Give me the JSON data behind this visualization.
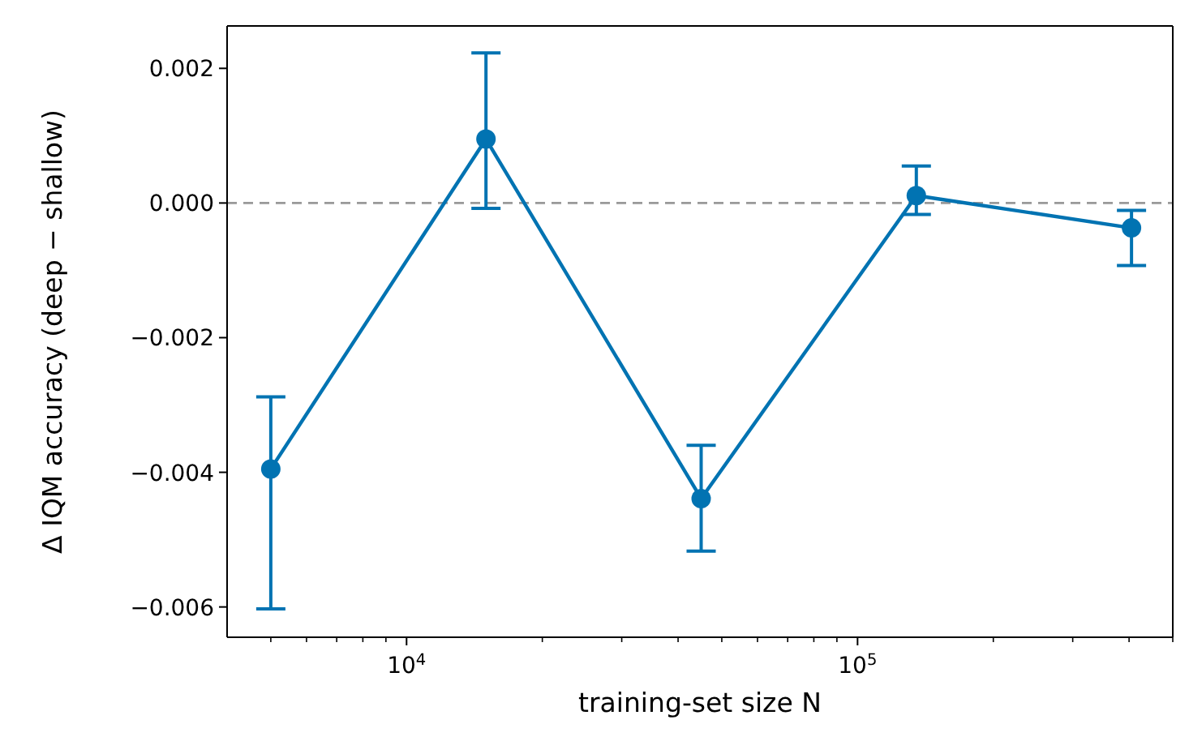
{
  "chart_data": {
    "type": "line",
    "xlabel": "training-set size N",
    "ylabel": "Δ IQM accuracy (deep − shallow)",
    "log": "x",
    "x": [
      5000,
      15000,
      45000,
      135000,
      405000
    ],
    "series": [
      {
        "color": "#0173b2",
        "values": [
          -0.00395,
          0.00095,
          -0.00439,
          0.00011,
          -0.00037
        ],
        "errors": [
          [
            -0.00603,
            -0.00288
          ],
          [
            -8e-05,
            0.00223
          ],
          [
            -0.00517,
            -0.0036
          ],
          [
            -0.00017,
            0.00055
          ],
          [
            -0.00093,
            -0.00011
          ]
        ]
      }
    ],
    "marker": "circle",
    "line_style": "solid",
    "grid": false,
    "legend": false,
    "xlim": [
      4000,
      500000
    ],
    "xticks": [
      {
        "value": 5000,
        "label": null
      },
      {
        "value": 6000,
        "label": null
      },
      {
        "value": 7000,
        "label": null
      },
      {
        "value": 8000,
        "label": null
      },
      {
        "value": 9000,
        "label": null
      },
      {
        "value": 10000,
        "label": "10$^{4}$"
      },
      {
        "value": 20000,
        "label": null
      },
      {
        "value": 30000,
        "label": null
      },
      {
        "value": 40000,
        "label": null
      },
      {
        "value": 50000,
        "label": null
      },
      {
        "value": 60000,
        "label": null
      },
      {
        "value": 70000,
        "label": null
      },
      {
        "value": 80000,
        "label": null
      },
      {
        "value": 90000,
        "label": null
      },
      {
        "value": 100000,
        "label": "10$^{5}$"
      },
      {
        "value": 200000,
        "label": null
      },
      {
        "value": 300000,
        "label": null
      },
      {
        "value": 400000,
        "label": null
      },
      {
        "value": 500000,
        "label": null
      }
    ],
    "ylim": [
      -0.00645,
      0.00263
    ],
    "yticks": [
      {
        "value": -0.006,
        "label": "−0.006"
      },
      {
        "value": -0.004,
        "label": "−0.004"
      },
      {
        "value": -0.002,
        "label": "−0.002"
      },
      {
        "value": 0,
        "label": "0.000"
      },
      {
        "value": 0.002,
        "label": "0.002"
      }
    ],
    "ref_lines": [
      {
        "axis": "y",
        "value": 0,
        "color": "#999999",
        "line_style": "dashed"
      }
    ]
  }
}
